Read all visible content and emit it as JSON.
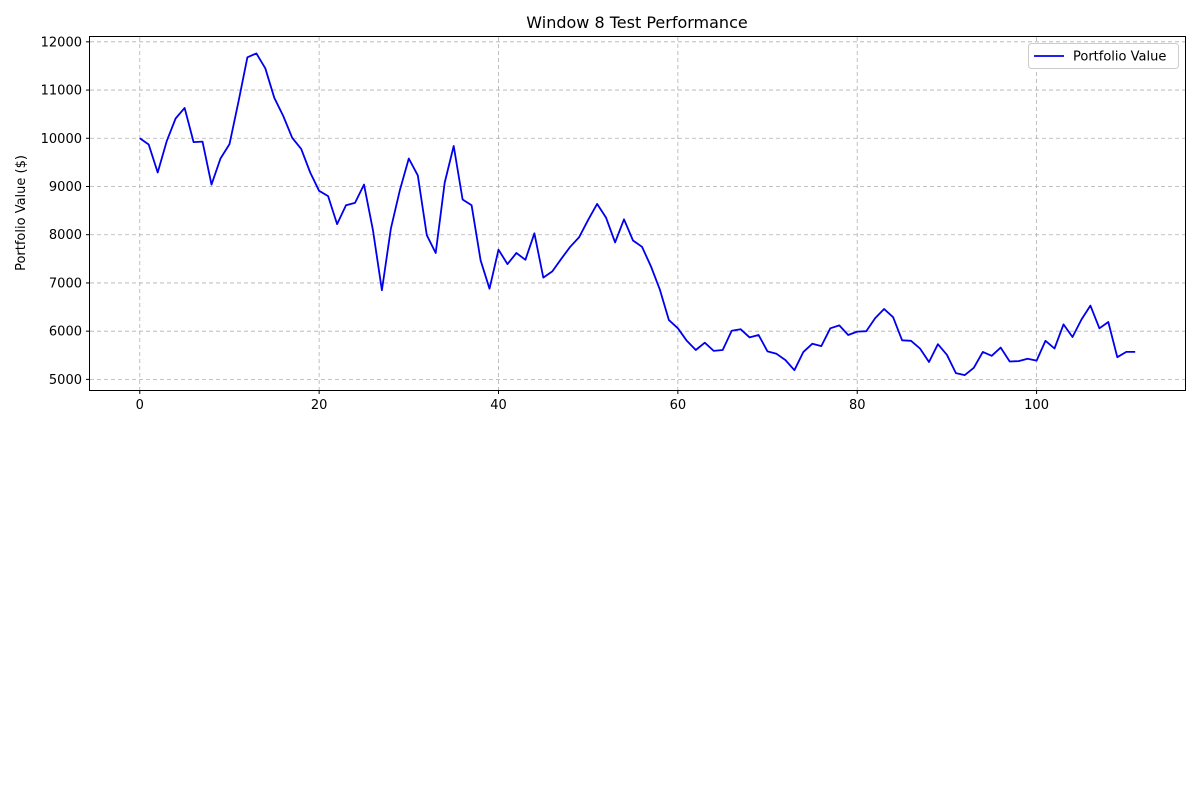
{
  "chart_data": {
    "type": "line",
    "title": "Window 8 Test Performance",
    "xlabel": "",
    "ylabel": "Portfolio Value ($)",
    "xlim": [
      -5.55,
      116.55
    ],
    "ylim": [
      4780,
      12100
    ],
    "xticks": [
      0,
      20,
      40,
      60,
      80,
      100
    ],
    "yticks": [
      5000,
      6000,
      7000,
      8000,
      9000,
      10000,
      11000,
      12000
    ],
    "grid": true,
    "legend_position": "top-right",
    "series": [
      {
        "name": "Portfolio Value",
        "color": "#0000ee",
        "x": [
          0,
          1,
          2,
          3,
          4,
          5,
          6,
          7,
          8,
          9,
          10,
          11,
          12,
          13,
          14,
          15,
          16,
          17,
          18,
          19,
          20,
          21,
          22,
          23,
          24,
          25,
          26,
          27,
          28,
          29,
          30,
          31,
          32,
          33,
          34,
          35,
          36,
          37,
          38,
          39,
          40,
          41,
          42,
          43,
          44,
          45,
          46,
          47,
          48,
          49,
          50,
          51,
          52,
          53,
          54,
          55,
          56,
          57,
          58,
          59,
          60,
          61,
          62,
          63,
          64,
          65,
          66,
          67,
          68,
          69,
          70,
          71,
          72,
          73,
          74,
          75,
          76,
          77,
          78,
          79,
          80,
          81,
          82,
          83,
          84,
          85,
          86,
          87,
          88,
          89,
          90,
          91,
          92,
          93,
          94,
          95,
          96,
          97,
          98,
          99,
          100,
          101,
          102,
          103,
          104,
          105,
          106,
          107,
          108,
          109,
          110,
          111
        ],
        "values": [
          10000,
          9870,
          9290,
          9940,
          10410,
          10630,
          9920,
          9930,
          9040,
          9580,
          9880,
          10750,
          11680,
          11760,
          11450,
          10840,
          10460,
          10010,
          9780,
          9290,
          8910,
          8800,
          8220,
          8610,
          8660,
          9040,
          8100,
          6850,
          8130,
          8920,
          9580,
          9230,
          7990,
          7620,
          9080,
          9840,
          8730,
          8610,
          7470,
          6880,
          7690,
          7390,
          7620,
          7480,
          8030,
          7110,
          7240,
          7500,
          7750,
          7950,
          8310,
          8640,
          8350,
          7840,
          8320,
          7880,
          7750,
          7340,
          6860,
          6230,
          6060,
          5800,
          5610,
          5760,
          5590,
          5610,
          6010,
          6040,
          5870,
          5920,
          5580,
          5530,
          5400,
          5190,
          5570,
          5740,
          5690,
          6060,
          6120,
          5920,
          5990,
          6000,
          6270,
          6460,
          6290,
          5810,
          5800,
          5640,
          5360,
          5730,
          5510,
          5130,
          5090,
          5240,
          5570,
          5490,
          5660,
          5370,
          5380,
          5430,
          5390,
          5800,
          5640,
          6140,
          5880,
          6240,
          6530,
          6060,
          6190,
          5460,
          5570,
          5570
        ]
      }
    ]
  }
}
